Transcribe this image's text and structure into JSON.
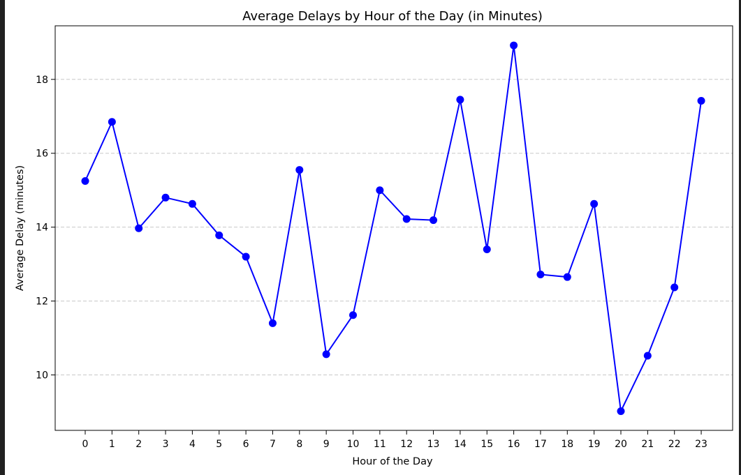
{
  "chart_data": {
    "type": "line",
    "title": "Average Delays by Hour of the Day (in Minutes)",
    "xlabel": "Hour of the Day",
    "ylabel": "Average Delay (minutes)",
    "categories": [
      "0",
      "1",
      "2",
      "3",
      "4",
      "5",
      "6",
      "7",
      "8",
      "9",
      "10",
      "11",
      "12",
      "13",
      "14",
      "15",
      "16",
      "17",
      "18",
      "19",
      "20",
      "21",
      "22",
      "23"
    ],
    "values": [
      15.25,
      16.85,
      13.97,
      14.8,
      14.63,
      13.78,
      13.2,
      11.4,
      15.55,
      10.56,
      11.62,
      15.0,
      14.22,
      14.19,
      17.45,
      13.4,
      18.92,
      12.72,
      12.65,
      14.63,
      9.02,
      10.52,
      12.37,
      17.42
    ],
    "y_ticks": [
      "10",
      "12",
      "14",
      "16",
      "18"
    ],
    "ylim": [
      8.5,
      19.45
    ],
    "grid": "y-dashed",
    "line_color": "#0000ff",
    "marker": "circle"
  }
}
